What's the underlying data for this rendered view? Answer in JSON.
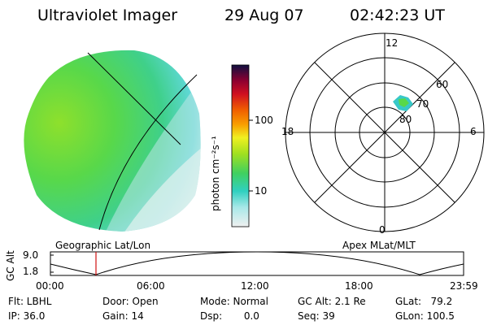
{
  "header": {
    "title": "Ultraviolet Imager",
    "date": "29 Aug 07",
    "time": "02:42:23 UT"
  },
  "colorbar": {
    "unit_label": "photon cm⁻²s⁻¹",
    "ticks": [
      "100",
      "10"
    ]
  },
  "polar_plot": {
    "mlt_labels": [
      "12",
      "18",
      "6",
      "0"
    ],
    "lat_labels": [
      "60",
      "70",
      "80"
    ]
  },
  "timeline": {
    "left_label": "Geographic Lat/Lon",
    "right_label": "Apex MLat/MLT",
    "axis_title": "GC Alt",
    "y_ticks": [
      "9.0",
      "1.8"
    ],
    "x_ticks": [
      "00:00",
      "06:00",
      "12:00",
      "18:00",
      "23:59"
    ]
  },
  "status": {
    "flt": "Flt: LBHL",
    "ip": "IP: 36.0",
    "door": "Door: Open",
    "gain": "Gain: 14",
    "mode": "Mode: Normal",
    "dsp": "Dsp:       0.0",
    "gc_alt": "GC Alt: 2.1 Re",
    "seq": "Seq: 39",
    "glat": "GLat:   79.2",
    "glon": "GLon: 100.5"
  },
  "colors": {
    "image_green": "#58d84a",
    "image_cyan": "#50d8d0",
    "image_light": "#d8f0ee",
    "auroral_spot": "#38c8c8",
    "marker_red": "#d01010"
  }
}
